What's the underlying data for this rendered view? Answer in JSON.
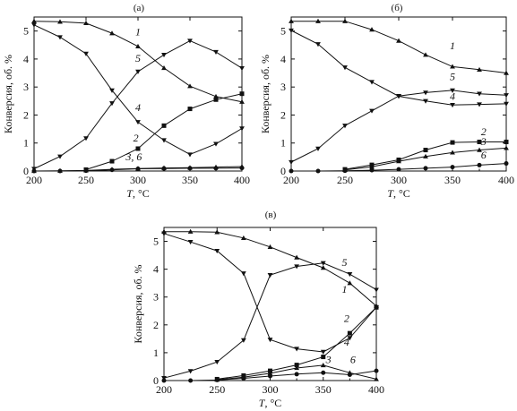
{
  "chart_data": [
    {
      "id": "a",
      "panel_label": "(а)",
      "type": "line",
      "xlabel_symbol": "T",
      "xlabel_unit": ", °C",
      "ylabel": "Конверсия, об. %",
      "xlim": [
        200,
        400
      ],
      "ylim": [
        0,
        5.5
      ],
      "xticks": [
        200,
        250,
        300,
        350,
        400
      ],
      "yticks": [
        0,
        1,
        2,
        3,
        4,
        5
      ],
      "grid": false,
      "series": [
        {
          "name": "1",
          "marker": "triangle-up",
          "x": [
            200,
            225,
            250,
            275,
            300,
            325,
            350,
            375,
            400
          ],
          "y": [
            5.35,
            5.33,
            5.28,
            4.92,
            4.45,
            3.68,
            3.03,
            2.66,
            2.47
          ]
        },
        {
          "name": "5",
          "marker": "triangle-down",
          "x": [
            200,
            225,
            250,
            275,
            300,
            325,
            350,
            375,
            400
          ],
          "y": [
            0.08,
            0.52,
            1.17,
            2.42,
            3.55,
            4.15,
            4.65,
            4.25,
            3.67
          ]
        },
        {
          "name": "4",
          "marker": "triangle-down",
          "x": [
            200,
            225,
            250,
            275,
            300,
            325,
            350,
            375,
            400
          ],
          "y": [
            5.22,
            4.78,
            4.19,
            2.88,
            1.75,
            1.1,
            0.59,
            0.97,
            1.52
          ]
        },
        {
          "name": "2",
          "marker": "square",
          "x": [
            250,
            275,
            300,
            325,
            350,
            375,
            400
          ],
          "y": [
            0.05,
            0.35,
            0.8,
            1.62,
            2.22,
            2.55,
            2.76
          ]
        },
        {
          "name": "3",
          "marker": "triangle-up",
          "x": [
            200,
            225,
            250,
            275,
            300,
            325,
            350,
            375,
            400
          ],
          "y": [
            0.0,
            0.01,
            0.02,
            0.06,
            0.09,
            0.11,
            0.12,
            0.14,
            0.16
          ]
        },
        {
          "name": "6",
          "marker": "circle",
          "x": [
            200,
            225,
            250,
            275,
            300,
            325,
            350,
            375,
            400
          ],
          "y": [
            0.0,
            0.0,
            0.01,
            0.04,
            0.08,
            0.09,
            0.1,
            0.1,
            0.11
          ]
        }
      ],
      "series_labels": [
        {
          "text": "1",
          "x": 300,
          "y": 4.85
        },
        {
          "text": "5",
          "x": 300,
          "y": 3.9
        },
        {
          "text": "4",
          "x": 300,
          "y": 2.15
        },
        {
          "text": "2",
          "x": 298,
          "y": 1.05
        },
        {
          "text": "3, 6",
          "x": 296,
          "y": 0.38
        }
      ]
    },
    {
      "id": "b",
      "panel_label": "(б)",
      "type": "line",
      "xlabel_symbol": "T",
      "xlabel_unit": ", °C",
      "ylabel": "Конверсия, об. %",
      "xlim": [
        200,
        400
      ],
      "ylim": [
        0,
        5.5
      ],
      "xticks": [
        200,
        250,
        300,
        350,
        400
      ],
      "yticks": [
        0,
        1,
        2,
        3,
        4,
        5
      ],
      "grid": false,
      "series": [
        {
          "name": "1",
          "marker": "triangle-up",
          "x": [
            200,
            225,
            250,
            275,
            300,
            325,
            350,
            375,
            400
          ],
          "y": [
            5.35,
            5.35,
            5.35,
            5.05,
            4.65,
            4.15,
            3.73,
            3.62,
            3.5
          ]
        },
        {
          "name": "5",
          "marker": "triangle-down",
          "x": [
            200,
            225,
            250,
            275,
            300,
            325,
            350,
            375,
            400
          ],
          "y": [
            0.32,
            0.8,
            1.62,
            2.15,
            2.68,
            2.8,
            2.88,
            2.76,
            2.71
          ]
        },
        {
          "name": "4",
          "marker": "triangle-down",
          "x": [
            200,
            225,
            250,
            275,
            300,
            325,
            350,
            375,
            400
          ],
          "y": [
            5.02,
            4.53,
            3.7,
            3.18,
            2.67,
            2.5,
            2.36,
            2.38,
            2.4
          ]
        },
        {
          "name": "2",
          "marker": "square",
          "x": [
            250,
            275,
            300,
            325,
            350,
            375,
            400
          ],
          "y": [
            0.06,
            0.22,
            0.4,
            0.75,
            1.02,
            1.04,
            1.04
          ]
        },
        {
          "name": "3",
          "marker": "triangle-up",
          "x": [
            250,
            275,
            300,
            325,
            350,
            375,
            400
          ],
          "y": [
            0.04,
            0.15,
            0.35,
            0.52,
            0.66,
            0.75,
            0.82
          ]
        },
        {
          "name": "6",
          "marker": "circle",
          "x": [
            200,
            225,
            250,
            275,
            300,
            325,
            350,
            375,
            400
          ],
          "y": [
            0.0,
            0.0,
            0.01,
            0.03,
            0.06,
            0.1,
            0.14,
            0.21,
            0.27
          ]
        }
      ],
      "series_labels": [
        {
          "text": "1",
          "x": 350,
          "y": 4.35
        },
        {
          "text": "5",
          "x": 350,
          "y": 3.25
        },
        {
          "text": "4",
          "x": 350,
          "y": 2.55
        },
        {
          "text": "2",
          "x": 379,
          "y": 1.28
        },
        {
          "text": "3",
          "x": 379,
          "y": 0.92
        },
        {
          "text": "6",
          "x": 379,
          "y": 0.45
        }
      ]
    },
    {
      "id": "c",
      "panel_label": "(в)",
      "type": "line",
      "xlabel_symbol": "T",
      "xlabel_unit": ", °C",
      "ylabel": "Конверсия, об. %",
      "xlim": [
        200,
        400
      ],
      "ylim": [
        0,
        5.5
      ],
      "xticks": [
        200,
        250,
        300,
        350,
        400
      ],
      "yticks": [
        0,
        1,
        2,
        3,
        4,
        5
      ],
      "grid": false,
      "series": [
        {
          "name": "1",
          "marker": "triangle-up",
          "x": [
            200,
            225,
            250,
            275,
            300,
            325,
            350,
            375,
            400
          ],
          "y": [
            5.35,
            5.35,
            5.33,
            5.12,
            4.8,
            4.42,
            4.05,
            3.5,
            2.68
          ]
        },
        {
          "name": "5",
          "marker": "triangle-down",
          "x": [
            200,
            225,
            250,
            275,
            300,
            325,
            350,
            375,
            400
          ],
          "y": [
            5.28,
            4.98,
            4.66,
            3.85,
            1.47,
            1.14,
            1.03,
            1.53,
            2.63
          ]
        },
        {
          "name": "4",
          "marker": "triangle-down",
          "x": [
            200,
            225,
            250,
            275,
            300,
            325,
            350,
            375,
            400
          ],
          "y": [
            0.09,
            0.34,
            0.67,
            1.45,
            3.79,
            4.1,
            4.22,
            3.82,
            3.26
          ]
        },
        {
          "name": "2",
          "marker": "square",
          "x": [
            250,
            275,
            300,
            325,
            350,
            375,
            400
          ],
          "y": [
            0.05,
            0.18,
            0.35,
            0.56,
            0.85,
            1.7,
            2.63
          ]
        },
        {
          "name": "3",
          "marker": "triangle-up",
          "x": [
            250,
            275,
            300,
            325,
            350,
            375,
            400
          ],
          "y": [
            0.03,
            0.12,
            0.26,
            0.45,
            0.55,
            0.28,
            0.05
          ]
        },
        {
          "name": "6",
          "marker": "circle",
          "x": [
            200,
            225,
            250,
            275,
            300,
            325,
            350,
            375,
            400
          ],
          "y": [
            0.0,
            0.0,
            0.02,
            0.08,
            0.16,
            0.23,
            0.28,
            0.21,
            0.35
          ]
        }
      ],
      "series_labels": [
        {
          "text": "5",
          "x": 370,
          "y": 4.12
        },
        {
          "text": "1",
          "x": 370,
          "y": 3.15
        },
        {
          "text": "2",
          "x": 372,
          "y": 2.1
        },
        {
          "text": "4",
          "x": 372,
          "y": 1.25
        },
        {
          "text": "3",
          "x": 355,
          "y": 0.62
        },
        {
          "text": "6",
          "x": 378,
          "y": 0.62
        }
      ]
    }
  ]
}
